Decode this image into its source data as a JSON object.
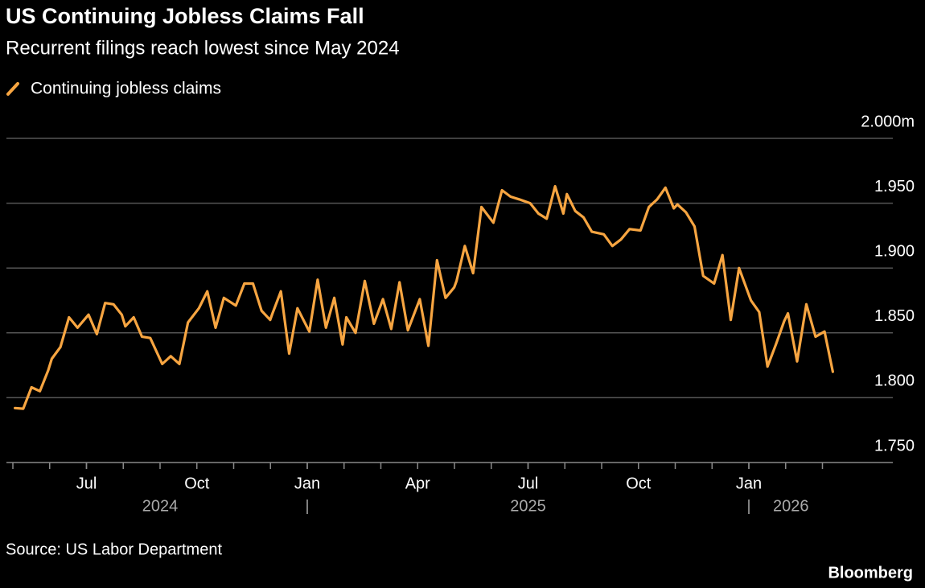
{
  "chart_data": {
    "type": "line",
    "title": "US Continuing Jobless Claims Fall",
    "subtitle": "Recurrent filings reach lowest since May 2024",
    "source": "Source: US Labor Department",
    "brand": "Bloomberg",
    "x": [
      "2024-05",
      "2024-05",
      "2024-05",
      "2024-05",
      "2024-05",
      "2024-06",
      "2024-06",
      "2024-06",
      "2024-06",
      "2024-07",
      "2024-07",
      "2024-07",
      "2024-07",
      "2024-07",
      "2024-08",
      "2024-08",
      "2024-08",
      "2024-08",
      "2024-09",
      "2024-09",
      "2024-09",
      "2024-09",
      "2024-10",
      "2024-10",
      "2024-10",
      "2024-10",
      "2024-11",
      "2024-11",
      "2024-11",
      "2024-11",
      "2024-11",
      "2024-12",
      "2024-12",
      "2024-12",
      "2024-12",
      "2025-01",
      "2025-01",
      "2025-01",
      "2025-01",
      "2025-01",
      "2025-02",
      "2025-02",
      "2025-02",
      "2025-02",
      "2025-03",
      "2025-03",
      "2025-03",
      "2025-03",
      "2025-04",
      "2025-04",
      "2025-04",
      "2025-04",
      "2025-04",
      "2025-05",
      "2025-05",
      "2025-05",
      "2025-05",
      "2025-06",
      "2025-06",
      "2025-06",
      "2025-06",
      "2025-07",
      "2025-07",
      "2025-07",
      "2025-07",
      "2025-07",
      "2025-08",
      "2025-08",
      "2025-08",
      "2025-08",
      "2025-09",
      "2025-09",
      "2025-09",
      "2025-09",
      "2025-10",
      "2025-10",
      "2025-10",
      "2025-10",
      "2025-10",
      "2025-11",
      "2025-11",
      "2025-11",
      "2025-11",
      "2025-12",
      "2025-12",
      "2025-12",
      "2025-12",
      "2026-01",
      "2026-01",
      "2026-01",
      "2026-01",
      "2026-01",
      "2026-02",
      "2026-02",
      "2026-02",
      "2026-02",
      "2026-03",
      "2026-03"
    ],
    "series": [
      {
        "name": "Continuing jobless claims",
        "color": "#f7a541",
        "values": [
          1.792,
          1.7915,
          1.808,
          1.805,
          1.821,
          1.83,
          1.839,
          1.862,
          1.854,
          1.864,
          1.849,
          1.873,
          1.872,
          1.864,
          1.855,
          1.862,
          1.847,
          1.846,
          1.826,
          1.832,
          1.826,
          1.858,
          1.869,
          1.882,
          1.854,
          1.877,
          1.871,
          1.888,
          1.888,
          1.867,
          1.86,
          1.865,
          1.882,
          1.834,
          1.869,
          1.851,
          1.891,
          1.854,
          1.877,
          1.841,
          1.862,
          1.85,
          1.89,
          1.857,
          1.876,
          1.853,
          1.889,
          1.852,
          1.876,
          1.84,
          1.906,
          1.877,
          1.885,
          1.89,
          1.917,
          1.896,
          1.947,
          1.935,
          1.96,
          1.955,
          1.953,
          1.95,
          1.942,
          1.938,
          1.963,
          1.942,
          1.957,
          1.944,
          1.939,
          1.928,
          1.926,
          1.917,
          1.922,
          1.93,
          1.929,
          1.947,
          1.953,
          1.962,
          1.946,
          1.949,
          1.943,
          1.932,
          1.894,
          1.888,
          1.91,
          1.86,
          1.9,
          1.875,
          1.866,
          1.824,
          1.841,
          1.859,
          1.865,
          1.828,
          1.872,
          1.847,
          1.851,
          1.82
        ]
      }
    ],
    "xlim": [
      "2024-05",
      "2026-05"
    ],
    "xticks": [
      {
        "value": "2024-07",
        "label": "Jul"
      },
      {
        "value": "2024-10",
        "label": "Oct"
      },
      {
        "value": "2025-01",
        "label": "Jan"
      },
      {
        "value": "2025-04",
        "label": "Apr"
      },
      {
        "value": "2025-07",
        "label": "Jul"
      },
      {
        "value": "2025-10",
        "label": "Oct"
      },
      {
        "value": "2026-01",
        "label": "Jan"
      }
    ],
    "xminorticks": [
      "2024-05",
      "2024-06",
      "2024-07",
      "2024-08",
      "2024-09",
      "2024-10",
      "2024-11",
      "2024-12",
      "2025-01",
      "2025-02",
      "2025-03",
      "2025-04",
      "2025-05",
      "2025-06",
      "2025-07",
      "2025-08",
      "2025-09",
      "2025-10",
      "2025-11",
      "2025-12",
      "2026-01",
      "2026-02",
      "2026-03"
    ],
    "xyears": [
      "2024",
      "2025",
      "2026"
    ],
    "ylim": [
      1.75,
      2.0
    ],
    "yticks": [
      {
        "value": 1.75,
        "label": "1.750"
      },
      {
        "value": 1.8,
        "label": "1.800"
      },
      {
        "value": 1.85,
        "label": "1.850"
      },
      {
        "value": 1.9,
        "label": "1.900"
      },
      {
        "value": 1.95,
        "label": "1.950"
      },
      {
        "value": 2.0,
        "label": "2.000m"
      }
    ],
    "grid": true,
    "legend": "top-left"
  }
}
